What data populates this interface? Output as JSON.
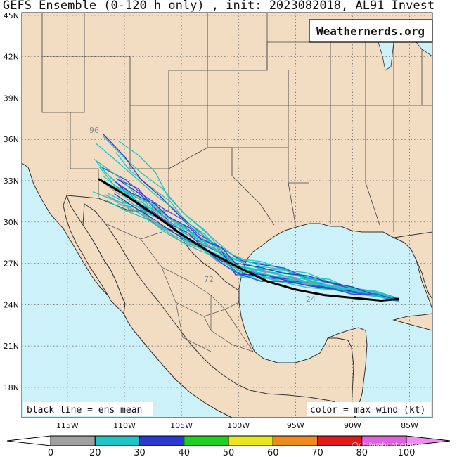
{
  "title": "GEFS Ensemble (0-120 h only) , init: 2023082018, AL91 Invest",
  "brand": "Weathernerds.org",
  "legend_left": "black line = ens mean",
  "legend_right": "color = max wind (kt)",
  "watermark": "@chihuahuatiempo",
  "lat_labels": [
    "45N",
    "42N",
    "39N",
    "36N",
    "33N",
    "30N",
    "27N",
    "24N",
    "21N",
    "18N"
  ],
  "lon_labels": [
    "115W",
    "110W",
    "105W",
    "100W",
    "95W",
    "90W",
    "85W"
  ],
  "hour_labels": [
    "96",
    "72",
    "72",
    "24"
  ],
  "colorbar": {
    "ticks": [
      "0",
      "20",
      "30",
      "40",
      "50",
      "60",
      "70",
      "80",
      "100"
    ],
    "colors": [
      "#a0a0a0",
      "#1fc4c4",
      "#2a3ad0",
      "#1fd01f",
      "#e8e81a",
      "#f08a1e",
      "#e01a1a",
      "#e060e0"
    ],
    "left_arrow": "#ffffff",
    "right_arrow": "#f28cf2"
  },
  "colors": {
    "land": "#f2dcc2",
    "ocean": "#cdf1f8",
    "border": "#333333",
    "mean_track": "#000000"
  },
  "tracks": {
    "mean": [
      [
        -112.2,
        33.1
      ],
      [
        -110,
        32.0
      ],
      [
        -107.5,
        30.6
      ],
      [
        -105,
        29.1
      ],
      [
        -102.5,
        27.8
      ],
      [
        -100,
        26.7
      ],
      [
        -97.5,
        25.7
      ],
      [
        -95,
        25.1
      ],
      [
        -92.5,
        24.7
      ],
      [
        -90,
        24.5
      ],
      [
        -87.5,
        24.3
      ],
      [
        -86,
        24.4
      ]
    ]
  }
}
